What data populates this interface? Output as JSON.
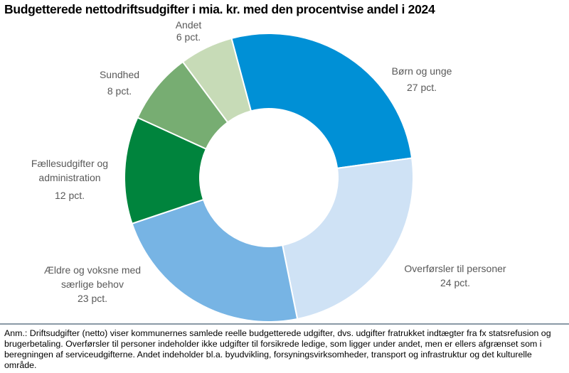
{
  "chart_data": {
    "type": "pie",
    "donut": true,
    "title": "Budgetterede nettodriftsudgifter i mia. kr. med den procentvise andel i 2024",
    "slices": [
      {
        "label": "Børn og unge",
        "value": 27,
        "value_label": "27 pct.",
        "color": "#0090D6"
      },
      {
        "label": "Overførsler til personer",
        "value": 24,
        "value_label": "24 pct.",
        "color": "#CFE2F5"
      },
      {
        "label": "Ældre og voksne med særlige behov",
        "value": 23,
        "value_label": "23 pct.",
        "color": "#77B4E4"
      },
      {
        "label": "Fællesudgifter og administration",
        "value": 12,
        "value_label": "12 pct.",
        "color": "#00843D"
      },
      {
        "label": "Sundhed",
        "value": 8,
        "value_label": "8 pct.",
        "color": "#77AD72"
      },
      {
        "label": "Andet",
        "value": 6,
        "value_label": "6 pct.",
        "color": "#C7DBB7"
      }
    ]
  },
  "note": "Anm.: Driftsudgifter (netto) viser kommunernes samlede reelle budgetterede udgifter, dvs. udgifter fratrukket indtægter fra fx statsrefusion og brugerbetaling. Overførsler til personer indeholder ikke udgifter til forsikrede ledige, som ligger under andet, men er ellers afgrænset som i beregningen af serviceudgifterne. Andet indeholder bl.a. byudvikling, forsyningsvirksomheder, transport og infrastruktur og det kulturelle område."
}
